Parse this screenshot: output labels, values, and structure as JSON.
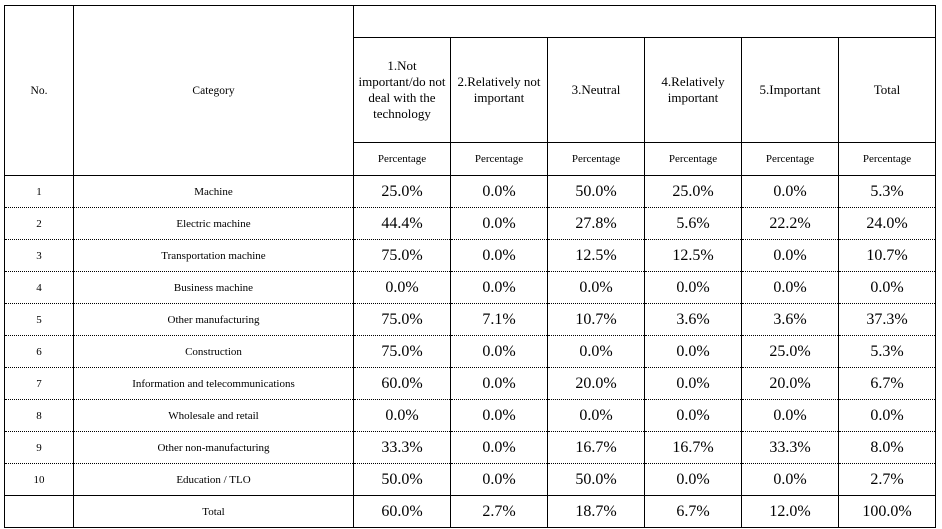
{
  "headers": {
    "no": "No.",
    "category": "Category",
    "top_blank": "",
    "columns": [
      "1.Not important/do not deal with the technology",
      "2.Relatively not important",
      "3.Neutral",
      "4.Relatively important",
      "5.Important",
      "Total"
    ],
    "sub": [
      "Percentage",
      "Percentage",
      "Percentage",
      "Percentage",
      "Percentage",
      "Percentage"
    ]
  },
  "rows": [
    {
      "no": "1",
      "category": "Machine",
      "values": [
        "25.0%",
        "0.0%",
        "50.0%",
        "25.0%",
        "0.0%",
        "5.3%"
      ]
    },
    {
      "no": "2",
      "category": "Electric machine",
      "values": [
        "44.4%",
        "0.0%",
        "27.8%",
        "5.6%",
        "22.2%",
        "24.0%"
      ]
    },
    {
      "no": "3",
      "category": "Transportation machine",
      "values": [
        "75.0%",
        "0.0%",
        "12.5%",
        "12.5%",
        "0.0%",
        "10.7%"
      ]
    },
    {
      "no": "4",
      "category": "Business machine",
      "values": [
        "0.0%",
        "0.0%",
        "0.0%",
        "0.0%",
        "0.0%",
        "0.0%"
      ]
    },
    {
      "no": "5",
      "category": "Other manufacturing",
      "values": [
        "75.0%",
        "7.1%",
        "10.7%",
        "3.6%",
        "3.6%",
        "37.3%"
      ]
    },
    {
      "no": "6",
      "category": "Construction",
      "values": [
        "75.0%",
        "0.0%",
        "0.0%",
        "0.0%",
        "25.0%",
        "5.3%"
      ]
    },
    {
      "no": "7",
      "category": "Information and telecommunications",
      "values": [
        "60.0%",
        "0.0%",
        "20.0%",
        "0.0%",
        "20.0%",
        "6.7%"
      ]
    },
    {
      "no": "8",
      "category": "Wholesale and retail",
      "values": [
        "0.0%",
        "0.0%",
        "0.0%",
        "0.0%",
        "0.0%",
        "0.0%"
      ]
    },
    {
      "no": "9",
      "category": "Other non-manufacturing",
      "values": [
        "33.3%",
        "0.0%",
        "16.7%",
        "16.7%",
        "33.3%",
        "8.0%"
      ]
    },
    {
      "no": "10",
      "category": "Education / TLO",
      "values": [
        "50.0%",
        "0.0%",
        "50.0%",
        "0.0%",
        "0.0%",
        "2.7%"
      ]
    }
  ],
  "total": {
    "label": "Total",
    "values": [
      "60.0%",
      "2.7%",
      "18.7%",
      "6.7%",
      "12.0%",
      "100.0%"
    ]
  }
}
